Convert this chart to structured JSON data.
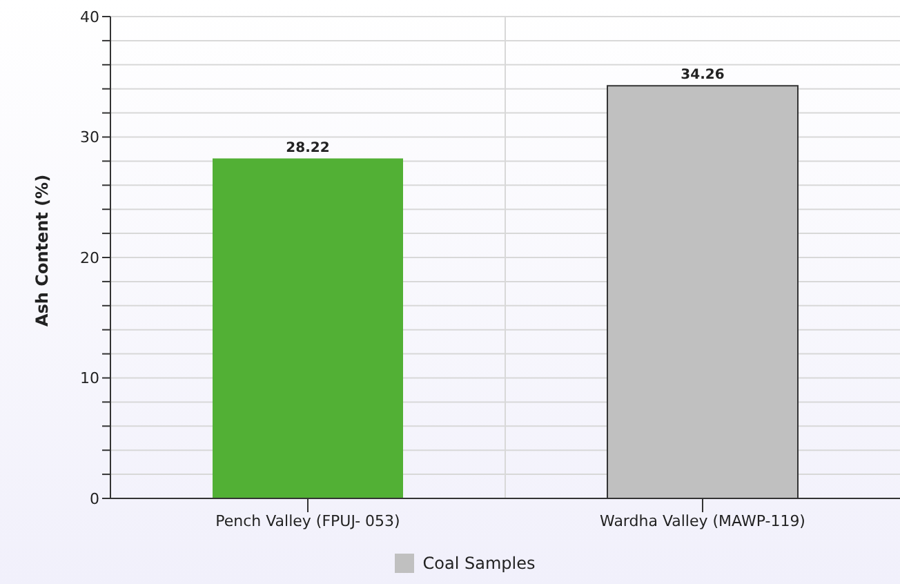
{
  "chart_data": {
    "type": "bar",
    "categories": [
      "Pench Valley (FPUJ- 053)",
      "Wardha Valley (MAWP-119)"
    ],
    "series": [
      {
        "name": "Coal Samples",
        "color": "#c0c0c0",
        "colors": [
          "#52b035",
          "#c0c0c0"
        ],
        "values": [
          28.22,
          34.26
        ]
      }
    ],
    "ylabel": "Ash Content (%)",
    "ylim": [
      0,
      40
    ],
    "yticks": [
      0,
      {
        "value": 2,
        "label": null
      },
      {
        "value": 4,
        "label": null
      },
      {
        "value": 6,
        "label": null
      },
      {
        "value": 8,
        "label": null
      },
      10,
      {
        "value": 12,
        "label": null
      },
      {
        "value": 14,
        "label": null
      },
      {
        "value": 16,
        "label": null
      },
      {
        "value": 18,
        "label": null
      },
      20,
      {
        "value": 22,
        "label": null
      },
      {
        "value": 24,
        "label": null
      },
      {
        "value": 26,
        "label": null
      },
      {
        "value": 28,
        "label": null
      },
      30,
      {
        "value": 32,
        "label": null
      },
      {
        "value": 34,
        "label": null
      },
      {
        "value": 36,
        "label": null
      },
      {
        "value": 38,
        "label": null
      },
      40
    ],
    "grid": true,
    "data_labels": true,
    "legend": "bottom"
  }
}
